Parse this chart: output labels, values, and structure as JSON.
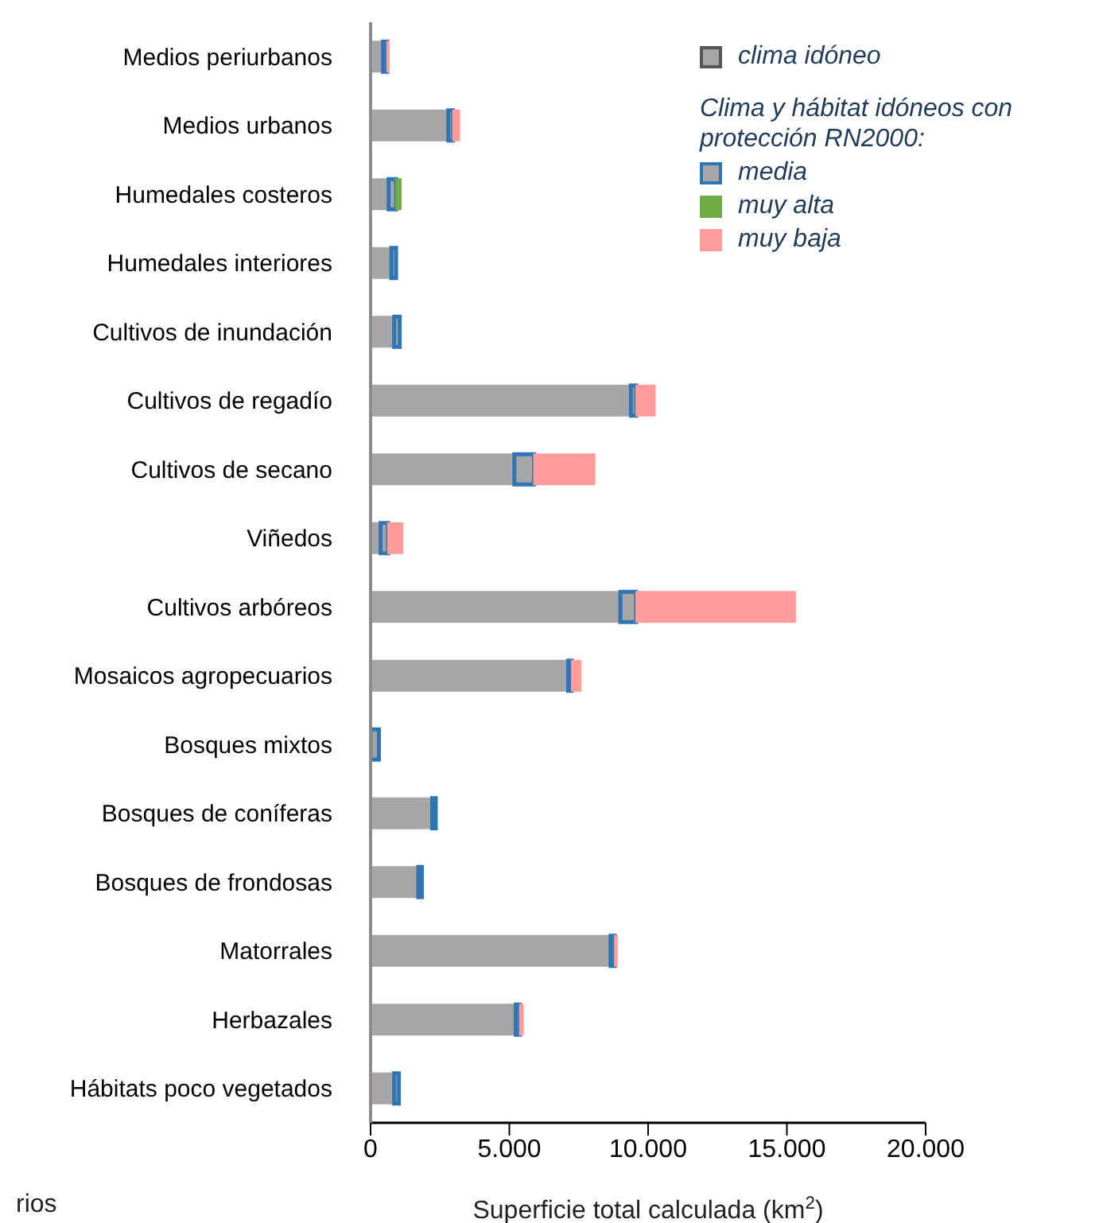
{
  "chart_data": {
    "type": "bar",
    "orientation": "horizontal",
    "stacked": true,
    "categories": [
      "Medios periurbanos",
      "Medios urbanos",
      "Humedales costeros",
      "Humedales interiores",
      "Cultivos de inundación",
      "Cultivos de regadío",
      "Cultivos de secano",
      "Viñedos",
      "Cultivos arbóreos",
      "Mosaicos agropecuarios",
      "Bosques mixtos",
      "Bosques de coníferas",
      "Bosques de frondosas",
      "Matorrales",
      "Herbazales",
      "Hábitats poco vegetados"
    ],
    "series": [
      {
        "name": "clima idóneo",
        "color": "#a6a6a6",
        "values": [
          450,
          2800,
          650,
          750,
          850,
          9380,
          5180,
          360,
          9000,
          7120,
          null,
          2220,
          1720,
          8650,
          5230,
          850
        ]
      },
      {
        "name": "media",
        "color": "#2e75b6",
        "values": [
          150,
          170,
          270,
          170,
          200,
          190,
          710,
          270,
          570,
          130,
          300,
          130,
          130,
          150,
          150,
          170
        ]
      },
      {
        "name": "muy alta",
        "color": "#70ad47",
        "values": [
          null,
          null,
          170,
          null,
          null,
          null,
          null,
          null,
          null,
          null,
          null,
          null,
          null,
          null,
          null,
          null
        ]
      },
      {
        "name": "muy baja",
        "color": "#ff9b9b",
        "values": [
          50,
          230,
          null,
          null,
          null,
          670,
          2180,
          520,
          5730,
          320,
          null,
          null,
          null,
          80,
          110,
          null
        ]
      }
    ],
    "legend_title": "Clima y hábitat idóneos con protección RN2000:",
    "legend": "top right",
    "xlabel": "Superficie total calculada (km$^{2}$)",
    "xlim": [
      0,
      20000
    ],
    "xticks": [
      0,
      {
        "value": 5000,
        "label": "5.000"
      },
      {
        "value": 10000,
        "label": "10.000"
      },
      {
        "value": 15000,
        "label": "15.000"
      },
      {
        "value": 20000,
        "label": "20.000"
      }
    ],
    "grid": false,
    "annotations": [
      "rios"
    ]
  }
}
